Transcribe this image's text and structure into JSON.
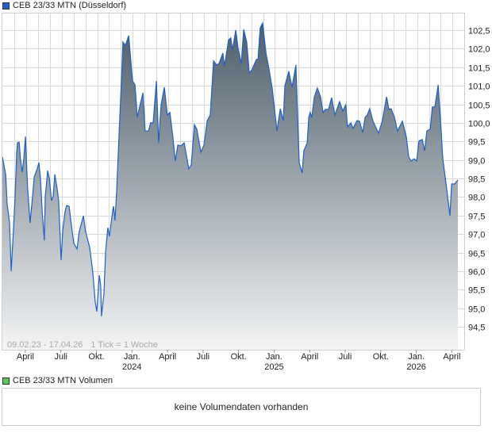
{
  "chart_data": {
    "type": "area",
    "title": "CEB 23/33 MTN (Düsseldorf)",
    "date_range": "09.02.23 - 17.04.26",
    "tick_info": "1 Tick = 1 Woche",
    "x_unit": "weeks since 09.02.23",
    "ylim": [
      93.9,
      103.0
    ],
    "y_ticks": [
      "94,5",
      "95,0",
      "95,5",
      "96,0",
      "96,5",
      "97,0",
      "97,5",
      "98,0",
      "98,5",
      "99,0",
      "99,5",
      "100,0",
      "100,5",
      "101,0",
      "101,5",
      "102,0",
      "102,5"
    ],
    "y_tick_values": [
      94.5,
      95,
      95.5,
      96,
      96.5,
      97,
      97.5,
      98,
      98.5,
      99,
      99.5,
      100,
      100.5,
      101,
      101.5,
      102,
      102.5
    ],
    "x_ticks": [
      {
        "label": "April",
        "year": "",
        "month_index": 2
      },
      {
        "label": "Juli",
        "year": "",
        "month_index": 5
      },
      {
        "label": "Okt.",
        "year": "",
        "month_index": 8
      },
      {
        "label": "Jan.",
        "year": "2024",
        "month_index": 11
      },
      {
        "label": "April",
        "year": "",
        "month_index": 14
      },
      {
        "label": "Juli",
        "year": "",
        "month_index": 17
      },
      {
        "label": "Okt.",
        "year": "",
        "month_index": 20
      },
      {
        "label": "Jan.",
        "year": "2025",
        "month_index": 23
      },
      {
        "label": "April",
        "year": "",
        "month_index": 26
      },
      {
        "label": "Juli",
        "year": "",
        "month_index": 29
      },
      {
        "label": "Okt.",
        "year": "",
        "month_index": 32
      },
      {
        "label": "Jan.",
        "year": "2026",
        "month_index": 35
      },
      {
        "label": "April",
        "year": "",
        "month_index": 38
      }
    ],
    "grid": true,
    "colors": {
      "line": "#1f5fc8",
      "fill_top": "#4d5e6a",
      "fill_bottom": "#f3f4f5",
      "grid": "#d9d9d9"
    },
    "series": [
      {
        "name": "CEB 23/33 MTN (Düsseldorf)",
        "points": [
          [
            0,
            99.08
          ],
          [
            1.2,
            98.61
          ],
          [
            1.7,
            97.82
          ],
          [
            2.6,
            97.32
          ],
          [
            3.2,
            96.0
          ],
          [
            4.0,
            97.05
          ],
          [
            4.6,
            97.97
          ],
          [
            5.2,
            99.18
          ],
          [
            5.5,
            99.46
          ],
          [
            6.1,
            99.48
          ],
          [
            6.6,
            99.03
          ],
          [
            7.2,
            98.67
          ],
          [
            7.8,
            99.03
          ],
          [
            8.4,
            99.63
          ],
          [
            8.7,
            99.1
          ],
          [
            9.2,
            98.24
          ],
          [
            10.1,
            97.3
          ],
          [
            11.0,
            98.03
          ],
          [
            11.6,
            98.54
          ],
          [
            12.7,
            98.76
          ],
          [
            13.3,
            98.93
          ],
          [
            13.9,
            98.46
          ],
          [
            14.5,
            97.6
          ],
          [
            15.3,
            96.83
          ],
          [
            15.6,
            98.01
          ],
          [
            16.5,
            98.71
          ],
          [
            17.1,
            98.5
          ],
          [
            17.9,
            97.9
          ],
          [
            18.5,
            98.01
          ],
          [
            19.1,
            98.61
          ],
          [
            19.9,
            98.24
          ],
          [
            20.5,
            97.9
          ],
          [
            21.4,
            96.3
          ],
          [
            22.0,
            97.11
          ],
          [
            22.8,
            97.6
          ],
          [
            23.4,
            97.77
          ],
          [
            24.3,
            97.75
          ],
          [
            25.1,
            97.26
          ],
          [
            26.0,
            96.75
          ],
          [
            27.2,
            96.6
          ],
          [
            28.0,
            97.07
          ],
          [
            29.5,
            97.49
          ],
          [
            30.3,
            97.07
          ],
          [
            31.8,
            96.64
          ],
          [
            32.9,
            96.0
          ],
          [
            33.8,
            95.18
          ],
          [
            34.4,
            94.91
          ],
          [
            35.3,
            95.89
          ],
          [
            35.8,
            95.61
          ],
          [
            36.1,
            94.78
          ],
          [
            37.0,
            95.4
          ],
          [
            37.6,
            96.53
          ],
          [
            38.4,
            97.17
          ],
          [
            39.0,
            96.94
          ],
          [
            40.2,
            97.64
          ],
          [
            40.5,
            97.75
          ],
          [
            41.0,
            97.37
          ],
          [
            41.6,
            98.11
          ],
          [
            42.2,
            99.18
          ],
          [
            43.4,
            101.24
          ],
          [
            43.9,
            102.18
          ],
          [
            44.8,
            102.09
          ],
          [
            46.0,
            102.35
          ],
          [
            47.4,
            101.13
          ],
          [
            48.3,
            101.02
          ],
          [
            48.8,
            100.53
          ],
          [
            49.1,
            100.15
          ],
          [
            50.3,
            100.53
          ],
          [
            51.2,
            100.81
          ],
          [
            52.0,
            99.78
          ],
          [
            53.2,
            99.78
          ],
          [
            54.0,
            100.0
          ],
          [
            54.9,
            100.0
          ],
          [
            56.1,
            101.13
          ],
          [
            56.9,
            99.46
          ],
          [
            57.8,
            100.49
          ],
          [
            59.0,
            100.96
          ],
          [
            60.1,
            100.21
          ],
          [
            61.0,
            100.28
          ],
          [
            62.1,
            99.61
          ],
          [
            63.0,
            98.97
          ],
          [
            63.9,
            99.4
          ],
          [
            65.0,
            99.38
          ],
          [
            66.2,
            99.46
          ],
          [
            67.9,
            98.76
          ],
          [
            68.8,
            98.86
          ],
          [
            69.9,
            99.95
          ],
          [
            70.8,
            99.83
          ],
          [
            72.3,
            99.21
          ],
          [
            73.4,
            99.4
          ],
          [
            74.6,
            100.06
          ],
          [
            75.7,
            100.21
          ],
          [
            76.9,
            101.67
          ],
          [
            78.0,
            101.56
          ],
          [
            78.9,
            101.6
          ],
          [
            80.3,
            101.88
          ],
          [
            80.9,
            101.54
          ],
          [
            82.4,
            102.24
          ],
          [
            83.2,
            102.29
          ],
          [
            83.8,
            101.97
          ],
          [
            85.0,
            102.5
          ],
          [
            85.8,
            102.03
          ],
          [
            87.0,
            101.6
          ],
          [
            87.9,
            102.52
          ],
          [
            89.0,
            102.18
          ],
          [
            89.9,
            101.34
          ],
          [
            91.0,
            101.45
          ],
          [
            92.5,
            101.71
          ],
          [
            93.1,
            101.71
          ],
          [
            93.9,
            102.56
          ],
          [
            94.8,
            102.69
          ],
          [
            96.0,
            101.88
          ],
          [
            97.1,
            101.45
          ],
          [
            98.3,
            100.92
          ],
          [
            100.0,
            99.78
          ],
          [
            101.2,
            100.38
          ],
          [
            102.3,
            100.06
          ],
          [
            102.9,
            101.0
          ],
          [
            104.3,
            101.39
          ],
          [
            105.5,
            100.96
          ],
          [
            106.9,
            101.56
          ],
          [
            107.5,
            100.32
          ],
          [
            108.1,
            98.93
          ],
          [
            109.2,
            98.65
          ],
          [
            109.8,
            99.25
          ],
          [
            111.0,
            99.46
          ],
          [
            111.6,
            100.15
          ],
          [
            112.1,
            100.28
          ],
          [
            112.7,
            100.15
          ],
          [
            113.6,
            100.7
          ],
          [
            114.7,
            100.94
          ],
          [
            115.9,
            100.7
          ],
          [
            116.8,
            100.28
          ],
          [
            117.6,
            100.36
          ],
          [
            118.8,
            100.36
          ],
          [
            119.9,
            100.68
          ],
          [
            121.1,
            100.21
          ],
          [
            122.8,
            100.57
          ],
          [
            124.0,
            100.32
          ],
          [
            125.1,
            100.49
          ],
          [
            125.7,
            99.89
          ],
          [
            126.9,
            100.0
          ],
          [
            127.7,
            99.85
          ],
          [
            129.2,
            100.06
          ],
          [
            130.1,
            100.04
          ],
          [
            131.2,
            99.74
          ],
          [
            132.1,
            100.15
          ],
          [
            132.9,
            100.21
          ],
          [
            133.8,
            100.38
          ],
          [
            135.0,
            100.04
          ],
          [
            137.0,
            99.72
          ],
          [
            138.4,
            100.06
          ],
          [
            139.9,
            100.7
          ],
          [
            140.8,
            100.36
          ],
          [
            141.6,
            100.38
          ],
          [
            142.8,
            100.15
          ],
          [
            143.9,
            99.78
          ],
          [
            145.7,
            100.04
          ],
          [
            147.1,
            99.63
          ],
          [
            148.0,
            99.08
          ],
          [
            148.8,
            98.97
          ],
          [
            150.0,
            99.03
          ],
          [
            150.9,
            98.97
          ],
          [
            151.7,
            99.51
          ],
          [
            152.9,
            99.55
          ],
          [
            153.8,
            99.25
          ],
          [
            154.6,
            99.78
          ],
          [
            155.8,
            99.83
          ],
          [
            156.6,
            100.43
          ],
          [
            157.5,
            100.43
          ],
          [
            158.7,
            101.02
          ],
          [
            159.5,
            100.17
          ],
          [
            160.4,
            99.03
          ],
          [
            161.8,
            98.24
          ],
          [
            163.0,
            97.49
          ],
          [
            163.6,
            98.35
          ],
          [
            164.7,
            98.35
          ],
          [
            165.9,
            98.46
          ]
        ]
      }
    ]
  },
  "volume": {
    "legend": "CEB 23/33 MTN Volumen",
    "message": "keine Volumendaten vorhanden",
    "color": "#5cc85c"
  }
}
